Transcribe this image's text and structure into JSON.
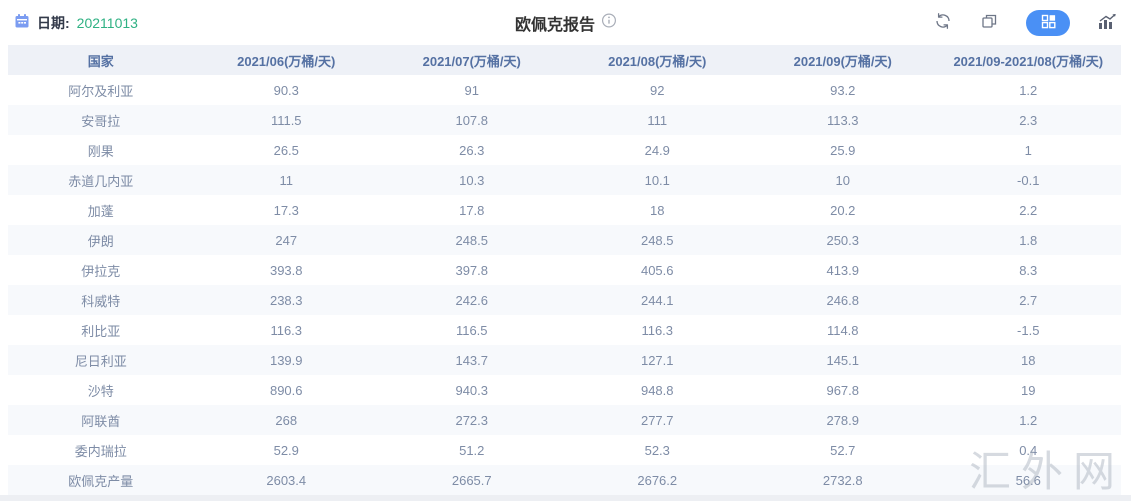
{
  "header": {
    "date_label": "日期:",
    "date_value": "20211013",
    "title": "欧佩克报告",
    "icons": {
      "calendar": "calendar-icon",
      "info": "info-circle-icon",
      "refresh": "refresh-icon",
      "copy": "copy-icon",
      "table_view": "grid-view-icon",
      "chart_view": "chart-view-icon"
    }
  },
  "table": {
    "columns": [
      "国家",
      "2021/06(万桶/天)",
      "2021/07(万桶/天)",
      "2021/08(万桶/天)",
      "2021/09(万桶/天)",
      "2021/09-2021/08(万桶/天)"
    ],
    "rows": [
      [
        "阿尔及利亚",
        "90.3",
        "91",
        "92",
        "93.2",
        "1.2"
      ],
      [
        "安哥拉",
        "111.5",
        "107.8",
        "111",
        "113.3",
        "2.3"
      ],
      [
        "刚果",
        "26.5",
        "26.3",
        "24.9",
        "25.9",
        "1"
      ],
      [
        "赤道几内亚",
        "11",
        "10.3",
        "10.1",
        "10",
        "-0.1"
      ],
      [
        "加蓬",
        "17.3",
        "17.8",
        "18",
        "20.2",
        "2.2"
      ],
      [
        "伊朗",
        "247",
        "248.5",
        "248.5",
        "250.3",
        "1.8"
      ],
      [
        "伊拉克",
        "393.8",
        "397.8",
        "405.6",
        "413.9",
        "8.3"
      ],
      [
        "科威特",
        "238.3",
        "242.6",
        "244.1",
        "246.8",
        "2.7"
      ],
      [
        "利比亚",
        "116.3",
        "116.5",
        "116.3",
        "114.8",
        "-1.5"
      ],
      [
        "尼日利亚",
        "139.9",
        "143.7",
        "127.1",
        "145.1",
        "18"
      ],
      [
        "沙特",
        "890.6",
        "940.3",
        "948.8",
        "967.8",
        "19"
      ],
      [
        "阿联酋",
        "268",
        "272.3",
        "277.7",
        "278.9",
        "1.2"
      ],
      [
        "委内瑞拉",
        "52.9",
        "51.2",
        "52.3",
        "52.7",
        "0.4"
      ],
      [
        "欧佩克产量",
        "2603.4",
        "2665.7",
        "2676.2",
        "2732.8",
        "56.6"
      ]
    ]
  },
  "watermark": "汇外网",
  "colors": {
    "accent-blue": "#4a90f5",
    "green": "#2fb183",
    "header-bg": "#eef1f7",
    "header-text": "#5571a3",
    "cell-text": "#7e8ca6",
    "stripe": "#f7f9fc",
    "icon-gray": "#6e7687",
    "date-label": "#333a4a",
    "watermark": "rgba(165,173,186,0.45)"
  }
}
